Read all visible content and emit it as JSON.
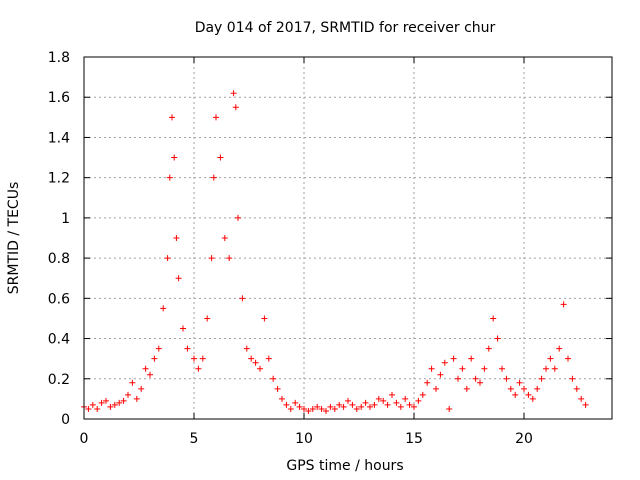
{
  "chart_data": {
    "type": "scatter",
    "title": "Day 014 of 2017, SRMTID for receiver chur",
    "xlabel": "GPS time / hours",
    "ylabel": "SRMTID / TECUs",
    "xlim": [
      0,
      24
    ],
    "ylim": [
      0,
      1.8
    ],
    "x_ticks": [
      0,
      5,
      10,
      15,
      20
    ],
    "x_tick_labels": [
      "0",
      "5",
      "10",
      "15",
      "20"
    ],
    "y_ticks": [
      0,
      0.2,
      0.4,
      0.6,
      0.8,
      1,
      1.2,
      1.4,
      1.6,
      1.8
    ],
    "y_tick_labels": [
      "0",
      "0.2",
      "0.4",
      "0.6",
      "0.8",
      "1",
      "1.2",
      "1.4",
      "1.6",
      "1.8"
    ],
    "grid": true,
    "marker": "+",
    "color": "#ff0000",
    "series": [
      {
        "name": "SRMTID",
        "points": [
          [
            0.0,
            0.06
          ],
          [
            0.2,
            0.05
          ],
          [
            0.4,
            0.07
          ],
          [
            0.6,
            0.05
          ],
          [
            0.8,
            0.08
          ],
          [
            1.0,
            0.09
          ],
          [
            1.2,
            0.06
          ],
          [
            1.4,
            0.07
          ],
          [
            1.6,
            0.08
          ],
          [
            1.8,
            0.09
          ],
          [
            2.0,
            0.12
          ],
          [
            2.2,
            0.18
          ],
          [
            2.4,
            0.1
          ],
          [
            2.6,
            0.15
          ],
          [
            2.8,
            0.25
          ],
          [
            3.0,
            0.22
          ],
          [
            3.2,
            0.3
          ],
          [
            3.4,
            0.35
          ],
          [
            3.6,
            0.55
          ],
          [
            3.8,
            0.8
          ],
          [
            3.9,
            1.2
          ],
          [
            4.0,
            1.5
          ],
          [
            4.1,
            1.3
          ],
          [
            4.2,
            0.9
          ],
          [
            4.3,
            0.7
          ],
          [
            4.5,
            0.45
          ],
          [
            4.7,
            0.35
          ],
          [
            5.0,
            0.3
          ],
          [
            5.2,
            0.25
          ],
          [
            5.4,
            0.3
          ],
          [
            5.6,
            0.5
          ],
          [
            5.8,
            0.8
          ],
          [
            5.9,
            1.2
          ],
          [
            6.0,
            1.5
          ],
          [
            6.2,
            1.3
          ],
          [
            6.4,
            0.9
          ],
          [
            6.6,
            0.8
          ],
          [
            6.8,
            1.62
          ],
          [
            6.9,
            1.55
          ],
          [
            7.0,
            1.0
          ],
          [
            7.2,
            0.6
          ],
          [
            7.4,
            0.35
          ],
          [
            7.6,
            0.3
          ],
          [
            7.8,
            0.28
          ],
          [
            8.0,
            0.25
          ],
          [
            8.2,
            0.5
          ],
          [
            8.4,
            0.3
          ],
          [
            8.6,
            0.2
          ],
          [
            8.8,
            0.15
          ],
          [
            9.0,
            0.1
          ],
          [
            9.2,
            0.07
          ],
          [
            9.4,
            0.05
          ],
          [
            9.6,
            0.08
          ],
          [
            9.8,
            0.06
          ],
          [
            10.0,
            0.05
          ],
          [
            10.2,
            0.04
          ],
          [
            10.4,
            0.05
          ],
          [
            10.6,
            0.06
          ],
          [
            10.8,
            0.05
          ],
          [
            11.0,
            0.04
          ],
          [
            11.2,
            0.06
          ],
          [
            11.4,
            0.05
          ],
          [
            11.6,
            0.07
          ],
          [
            11.8,
            0.06
          ],
          [
            12.0,
            0.09
          ],
          [
            12.2,
            0.07
          ],
          [
            12.4,
            0.05
          ],
          [
            12.6,
            0.06
          ],
          [
            12.8,
            0.08
          ],
          [
            13.0,
            0.06
          ],
          [
            13.2,
            0.07
          ],
          [
            13.4,
            0.1
          ],
          [
            13.6,
            0.09
          ],
          [
            13.8,
            0.07
          ],
          [
            14.0,
            0.12
          ],
          [
            14.2,
            0.08
          ],
          [
            14.4,
            0.06
          ],
          [
            14.6,
            0.1
          ],
          [
            14.8,
            0.07
          ],
          [
            15.0,
            0.06
          ],
          [
            15.2,
            0.09
          ],
          [
            15.4,
            0.12
          ],
          [
            15.6,
            0.18
          ],
          [
            15.8,
            0.25
          ],
          [
            16.0,
            0.15
          ],
          [
            16.2,
            0.22
          ],
          [
            16.4,
            0.28
          ],
          [
            16.6,
            0.05
          ],
          [
            16.8,
            0.3
          ],
          [
            17.0,
            0.2
          ],
          [
            17.2,
            0.25
          ],
          [
            17.4,
            0.15
          ],
          [
            17.6,
            0.3
          ],
          [
            17.8,
            0.2
          ],
          [
            18.0,
            0.18
          ],
          [
            18.2,
            0.25
          ],
          [
            18.4,
            0.35
          ],
          [
            18.6,
            0.5
          ],
          [
            18.8,
            0.4
          ],
          [
            19.0,
            0.25
          ],
          [
            19.2,
            0.2
          ],
          [
            19.4,
            0.15
          ],
          [
            19.6,
            0.12
          ],
          [
            19.8,
            0.18
          ],
          [
            20.0,
            0.15
          ],
          [
            20.2,
            0.12
          ],
          [
            20.4,
            0.1
          ],
          [
            20.6,
            0.15
          ],
          [
            20.8,
            0.2
          ],
          [
            21.0,
            0.25
          ],
          [
            21.2,
            0.3
          ],
          [
            21.4,
            0.25
          ],
          [
            21.6,
            0.35
          ],
          [
            21.8,
            0.57
          ],
          [
            22.0,
            0.3
          ],
          [
            22.2,
            0.2
          ],
          [
            22.4,
            0.15
          ],
          [
            22.6,
            0.1
          ],
          [
            22.8,
            0.07
          ]
        ]
      }
    ]
  }
}
